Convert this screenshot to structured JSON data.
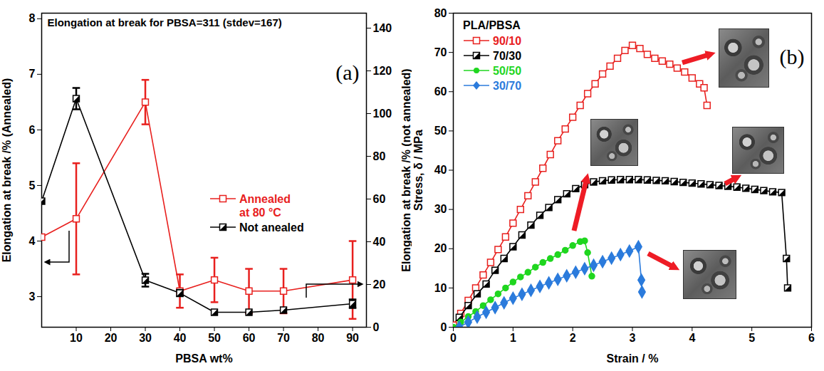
{
  "chart_data": [
    {
      "type": "line",
      "title": "Elongation at break for PBSA=311 (stdev=167)",
      "panel_label": "(a)",
      "x_label": "PBSA wt%",
      "y_label": "Elongation at break /% (Annealed)",
      "y2_label": "Elongation at break /% (not annealed)",
      "x": [
        0,
        10,
        30,
        40,
        50,
        60,
        70,
        90
      ],
      "xlim": [
        0,
        94
      ],
      "xticks": [
        10,
        20,
        30,
        40,
        50,
        60,
        70,
        80,
        90
      ],
      "ylim": [
        2.45,
        8.1
      ],
      "yticks": [
        3,
        4,
        5,
        6,
        7,
        8
      ],
      "y2lim": [
        0,
        147
      ],
      "y2ticks": [
        0,
        20,
        40,
        60,
        80,
        100,
        120,
        140
      ],
      "grid": false,
      "legend": "right",
      "series": [
        {
          "name": "Annealed at 80 °C",
          "color": "#e8201e",
          "marker": "square",
          "values": [
            4.07,
            4.4,
            6.5,
            3.1,
            3.3,
            3.1,
            3.1,
            3.3
          ],
          "errors": [
            null,
            1.0,
            0.4,
            0.3,
            0.4,
            0.4,
            0.4,
            0.7
          ]
        },
        {
          "name": "Not anealed",
          "color": "#000000",
          "marker": "half-square",
          "axis": "y2",
          "values": [
            59,
            107,
            22,
            16,
            7,
            7,
            8,
            11
          ],
          "errors": [
            null,
            5,
            3,
            1.5,
            null,
            null,
            null,
            2
          ]
        }
      ]
    },
    {
      "type": "line",
      "panel_label": "(b)",
      "x_label": "Strain / %",
      "y_label": "Stress, δ / MPa",
      "xlim": [
        0,
        6
      ],
      "xticks": [
        0,
        1,
        2,
        3,
        4,
        5,
        6
      ],
      "ylim": [
        0,
        80
      ],
      "yticks": [
        0,
        10,
        20,
        30,
        40,
        50,
        60,
        70,
        80
      ],
      "grid": false,
      "legend": "top-left",
      "legend_title": "PLA/PBSA",
      "series": [
        {
          "name": "90/10",
          "color": "#e8201e",
          "marker": "square",
          "x": [
            0,
            0.125,
            0.25,
            0.375,
            0.5,
            0.625,
            0.75,
            0.875,
            1,
            1.125,
            1.25,
            1.375,
            1.5,
            1.625,
            1.75,
            1.875,
            2,
            2.125,
            2.25,
            2.375,
            2.5,
            2.625,
            2.75,
            2.875,
            3,
            3.125,
            3.25,
            3.375,
            3.5,
            3.625,
            3.75,
            3.875,
            4,
            4.125,
            4.2,
            4.25
          ],
          "values": [
            0.5,
            3.5,
            6.8,
            10,
            13.3,
            16.5,
            19.8,
            23,
            26.5,
            30,
            33.5,
            37,
            40.5,
            44,
            47.5,
            50.5,
            53.5,
            56.5,
            59.5,
            62,
            64.5,
            66.5,
            68.5,
            70.5,
            71.8,
            71,
            69.5,
            68.5,
            67.8,
            67,
            66,
            65,
            63.5,
            62,
            61,
            56.5
          ]
        },
        {
          "name": "70/30",
          "color": "#000000",
          "marker": "half-square",
          "x": [
            0.1,
            0.25,
            0.4,
            0.55,
            0.7,
            0.85,
            1,
            1.15,
            1.3,
            1.45,
            1.6,
            1.75,
            1.9,
            2.05,
            2.2,
            2.35,
            2.5,
            2.65,
            2.8,
            2.95,
            3.1,
            3.25,
            3.4,
            3.55,
            3.7,
            3.85,
            4,
            4.15,
            4.3,
            4.45,
            4.6,
            4.75,
            4.9,
            5.05,
            5.2,
            5.35,
            5.5,
            5.58,
            5.6
          ],
          "values": [
            2.5,
            5.5,
            8.5,
            11,
            14.5,
            17.5,
            20.5,
            23.5,
            26,
            28.5,
            30.5,
            32.5,
            34,
            35.3,
            36.3,
            37,
            37.3,
            37.5,
            37.6,
            37.6,
            37.6,
            37.5,
            37.4,
            37.3,
            37.1,
            36.9,
            36.7,
            36.5,
            36.3,
            36.1,
            35.9,
            35.7,
            35.4,
            35.1,
            34.8,
            34.5,
            34.3,
            17.5,
            10
          ]
        },
        {
          "name": "50/50",
          "color": "#1fd61f",
          "marker": "circle",
          "x": [
            0,
            0.125,
            0.25,
            0.375,
            0.5,
            0.625,
            0.75,
            0.875,
            1,
            1.125,
            1.25,
            1.375,
            1.5,
            1.625,
            1.75,
            1.875,
            2,
            2.125,
            2.2,
            2.25,
            2.32
          ],
          "values": [
            0,
            1.3,
            2.7,
            4,
            5.5,
            7,
            8.5,
            10,
            11.5,
            12.8,
            14,
            15.3,
            16.5,
            17.5,
            18.5,
            19.6,
            20.8,
            21.8,
            22,
            19,
            13
          ]
        },
        {
          "name": "30/70",
          "color": "#2b7bdc",
          "marker": "diamond",
          "x": [
            0.1,
            0.25,
            0.4,
            0.55,
            0.7,
            0.85,
            1,
            1.15,
            1.3,
            1.45,
            1.6,
            1.75,
            1.9,
            2.05,
            2.2,
            2.35,
            2.5,
            2.65,
            2.8,
            2.95,
            3.1,
            3.15,
            3.16
          ],
          "values": [
            0,
            1.3,
            2.6,
            3.8,
            5,
            6.2,
            7.4,
            8.4,
            9.4,
            10.4,
            11.3,
            12.2,
            13.1,
            14,
            14.9,
            15.8,
            16.7,
            17.6,
            18.5,
            19.4,
            20.5,
            12,
            9
          ]
        }
      ]
    }
  ]
}
